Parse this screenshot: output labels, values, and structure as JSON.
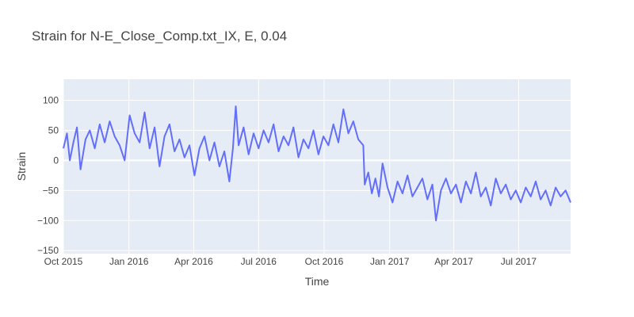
{
  "chart_data": {
    "type": "line",
    "title": "Strain for N-E_Close_Comp.txt_IX, E, 0.04",
    "xlabel": "Time",
    "ylabel": "Strain",
    "xlim": [
      "2015-10-01",
      "2017-09-12"
    ],
    "ylim": [
      -155,
      135
    ],
    "x_ticks": [
      {
        "date": "2015-10-01",
        "label": "Oct 2015"
      },
      {
        "date": "2016-01-01",
        "label": "Jan 2016"
      },
      {
        "date": "2016-04-01",
        "label": "Apr 2016"
      },
      {
        "date": "2016-07-01",
        "label": "Jul 2016"
      },
      {
        "date": "2016-10-01",
        "label": "Oct 2016"
      },
      {
        "date": "2017-01-01",
        "label": "Jan 2017"
      },
      {
        "date": "2017-04-01",
        "label": "Apr 2017"
      },
      {
        "date": "2017-07-01",
        "label": "Jul 2017"
      }
    ],
    "y_ticks": [
      -150,
      -100,
      -50,
      0,
      50,
      100
    ],
    "grid": true,
    "series": [
      {
        "color": "#636efa",
        "points": [
          [
            "2015-10-01",
            20
          ],
          [
            "2015-10-06",
            45
          ],
          [
            "2015-10-10",
            0
          ],
          [
            "2015-10-15",
            30
          ],
          [
            "2015-10-20",
            55
          ],
          [
            "2015-10-25",
            -15
          ],
          [
            "2015-11-01",
            35
          ],
          [
            "2015-11-07",
            50
          ],
          [
            "2015-11-14",
            20
          ],
          [
            "2015-11-21",
            60
          ],
          [
            "2015-11-28",
            30
          ],
          [
            "2015-12-05",
            65
          ],
          [
            "2015-12-12",
            40
          ],
          [
            "2015-12-19",
            25
          ],
          [
            "2015-12-26",
            0
          ],
          [
            "2016-01-02",
            75
          ],
          [
            "2016-01-09",
            45
          ],
          [
            "2016-01-16",
            30
          ],
          [
            "2016-01-23",
            80
          ],
          [
            "2016-01-30",
            20
          ],
          [
            "2016-02-06",
            55
          ],
          [
            "2016-02-13",
            -10
          ],
          [
            "2016-02-20",
            40
          ],
          [
            "2016-02-27",
            60
          ],
          [
            "2016-03-05",
            15
          ],
          [
            "2016-03-12",
            35
          ],
          [
            "2016-03-19",
            5
          ],
          [
            "2016-03-26",
            25
          ],
          [
            "2016-04-02",
            -25
          ],
          [
            "2016-04-09",
            20
          ],
          [
            "2016-04-16",
            40
          ],
          [
            "2016-04-23",
            0
          ],
          [
            "2016-04-30",
            30
          ],
          [
            "2016-05-07",
            -10
          ],
          [
            "2016-05-14",
            15
          ],
          [
            "2016-05-21",
            -35
          ],
          [
            "2016-05-26",
            20
          ],
          [
            "2016-05-30",
            90
          ],
          [
            "2016-06-03",
            25
          ],
          [
            "2016-06-10",
            55
          ],
          [
            "2016-06-17",
            10
          ],
          [
            "2016-06-24",
            45
          ],
          [
            "2016-07-01",
            20
          ],
          [
            "2016-07-08",
            50
          ],
          [
            "2016-07-15",
            30
          ],
          [
            "2016-07-22",
            60
          ],
          [
            "2016-07-29",
            15
          ],
          [
            "2016-08-05",
            40
          ],
          [
            "2016-08-12",
            25
          ],
          [
            "2016-08-19",
            55
          ],
          [
            "2016-08-26",
            5
          ],
          [
            "2016-09-02",
            35
          ],
          [
            "2016-09-09",
            20
          ],
          [
            "2016-09-16",
            50
          ],
          [
            "2016-09-23",
            10
          ],
          [
            "2016-09-30",
            40
          ],
          [
            "2016-10-07",
            25
          ],
          [
            "2016-10-14",
            60
          ],
          [
            "2016-10-21",
            30
          ],
          [
            "2016-10-28",
            85
          ],
          [
            "2016-11-04",
            45
          ],
          [
            "2016-11-11",
            65
          ],
          [
            "2016-11-18",
            35
          ],
          [
            "2016-11-25",
            25
          ],
          [
            "2016-11-27",
            -40
          ],
          [
            "2016-12-02",
            -20
          ],
          [
            "2016-12-07",
            -55
          ],
          [
            "2016-12-12",
            -30
          ],
          [
            "2016-12-17",
            -60
          ],
          [
            "2016-12-22",
            -5
          ],
          [
            "2016-12-29",
            -45
          ],
          [
            "2017-01-05",
            -70
          ],
          [
            "2017-01-12",
            -35
          ],
          [
            "2017-01-19",
            -55
          ],
          [
            "2017-01-26",
            -25
          ],
          [
            "2017-02-02",
            -60
          ],
          [
            "2017-02-09",
            -45
          ],
          [
            "2017-02-16",
            -30
          ],
          [
            "2017-02-23",
            -65
          ],
          [
            "2017-03-02",
            -40
          ],
          [
            "2017-03-07",
            -100
          ],
          [
            "2017-03-14",
            -50
          ],
          [
            "2017-03-21",
            -30
          ],
          [
            "2017-03-28",
            -55
          ],
          [
            "2017-04-04",
            -40
          ],
          [
            "2017-04-11",
            -70
          ],
          [
            "2017-04-18",
            -35
          ],
          [
            "2017-04-25",
            -55
          ],
          [
            "2017-05-02",
            -20
          ],
          [
            "2017-05-09",
            -60
          ],
          [
            "2017-05-16",
            -45
          ],
          [
            "2017-05-23",
            -75
          ],
          [
            "2017-05-30",
            -30
          ],
          [
            "2017-06-06",
            -55
          ],
          [
            "2017-06-13",
            -40
          ],
          [
            "2017-06-20",
            -65
          ],
          [
            "2017-06-27",
            -50
          ],
          [
            "2017-07-04",
            -70
          ],
          [
            "2017-07-11",
            -45
          ],
          [
            "2017-07-18",
            -60
          ],
          [
            "2017-07-25",
            -35
          ],
          [
            "2017-08-01",
            -65
          ],
          [
            "2017-08-08",
            -50
          ],
          [
            "2017-08-15",
            -75
          ],
          [
            "2017-08-22",
            -45
          ],
          [
            "2017-08-29",
            -60
          ],
          [
            "2017-09-05",
            -50
          ],
          [
            "2017-09-12",
            -70
          ]
        ]
      }
    ]
  }
}
